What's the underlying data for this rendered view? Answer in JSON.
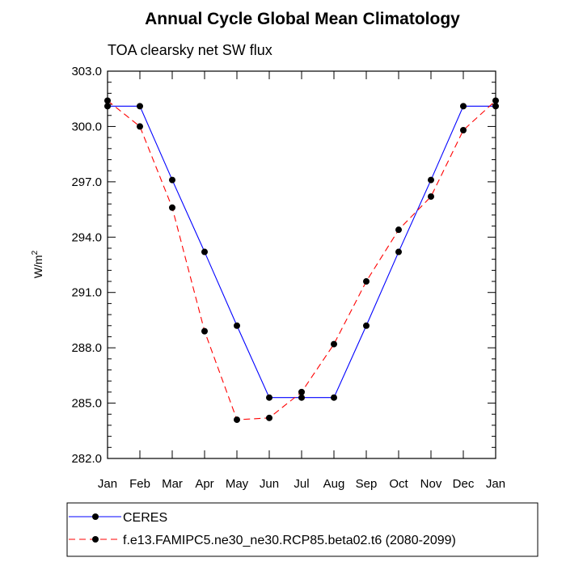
{
  "chart_data": {
    "type": "line",
    "title": "Annual Cycle Global Mean Climatology",
    "subtitle": "TOA clearsky net SW flux",
    "ylabel_base": "W/m",
    "ylabel_sup": "2",
    "xlabel": "",
    "categories": [
      "Jan",
      "Feb",
      "Mar",
      "Apr",
      "May",
      "Jun",
      "Jul",
      "Aug",
      "Sep",
      "Oct",
      "Nov",
      "Dec",
      "Jan"
    ],
    "ylim": [
      282.0,
      303.0
    ],
    "yticks": [
      "282.0",
      "285.0",
      "288.0",
      "291.0",
      "294.0",
      "297.0",
      "300.0",
      "303.0"
    ],
    "series": [
      {
        "name": "CERES",
        "color": "#0000ff",
        "dashed": false,
        "values": [
          301.1,
          301.1,
          297.1,
          293.2,
          289.2,
          285.3,
          285.3,
          285.3,
          289.2,
          293.2,
          297.1,
          301.1,
          301.1
        ]
      },
      {
        "name": "f.e13.FAMIPC5.ne30_ne30.RCP85.beta02.t6 (2080-2099)",
        "color": "#ff0000",
        "dashed": true,
        "values": [
          301.4,
          300.0,
          295.6,
          288.9,
          284.1,
          284.2,
          285.6,
          288.2,
          291.6,
          294.4,
          296.2,
          299.8,
          301.4
        ]
      }
    ],
    "legend_position": "bottom"
  }
}
